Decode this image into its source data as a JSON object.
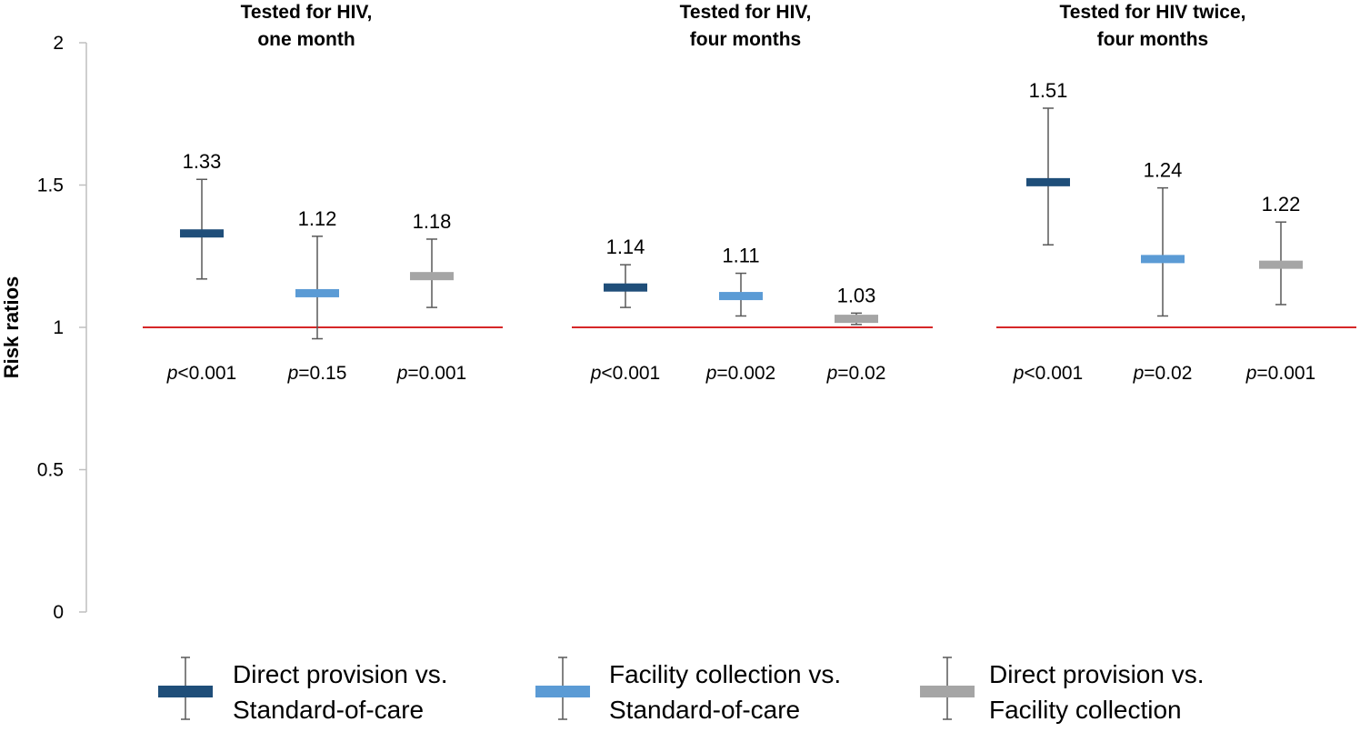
{
  "chart_data": {
    "type": "errorbar",
    "ylabel": "Risk ratios",
    "ylim": [
      0,
      2
    ],
    "yticks": [
      "0",
      "0.5",
      "1",
      "1.5",
      "2"
    ],
    "reference_line": 1,
    "reference_color": "#d62728",
    "grid": false,
    "legend_position": "bottom",
    "series": [
      {
        "key": "direct_vs_soc",
        "name_line1": "Direct provision vs.",
        "name_line2": "Standard-of-care",
        "color": "#1f4e79"
      },
      {
        "key": "facility_vs_soc",
        "name_line1": "Facility collection vs.",
        "name_line2": "Standard-of-care",
        "color": "#5b9bd5"
      },
      {
        "key": "direct_vs_facility",
        "name_line1": "Direct provision vs.",
        "name_line2": "Facility collection",
        "color": "#a5a5a5"
      }
    ],
    "panels": [
      {
        "title_line1": "Tested for HIV,",
        "title_line2": "one month",
        "points": [
          {
            "value": 1.33,
            "low": 1.17,
            "high": 1.52,
            "label": "1.33",
            "p_prefix": "p",
            "p_rest": "<0.001"
          },
          {
            "value": 1.12,
            "low": 0.96,
            "high": 1.32,
            "label": "1.12",
            "p_prefix": "p",
            "p_rest": "=0.15"
          },
          {
            "value": 1.18,
            "low": 1.07,
            "high": 1.31,
            "label": "1.18",
            "p_prefix": "p",
            "p_rest": "=0.001"
          }
        ]
      },
      {
        "title_line1": "Tested for HIV,",
        "title_line2": "four months",
        "points": [
          {
            "value": 1.14,
            "low": 1.07,
            "high": 1.22,
            "label": "1.14",
            "p_prefix": "p",
            "p_rest": "<0.001"
          },
          {
            "value": 1.11,
            "low": 1.04,
            "high": 1.19,
            "label": "1.11",
            "p_prefix": "p",
            "p_rest": "=0.002"
          },
          {
            "value": 1.03,
            "low": 1.01,
            "high": 1.05,
            "label": "1.03",
            "p_prefix": "p",
            "p_rest": "=0.02"
          }
        ]
      },
      {
        "title_line1": "Tested for HIV twice,",
        "title_line2": "four months",
        "points": [
          {
            "value": 1.51,
            "low": 1.29,
            "high": 1.77,
            "label": "1.51",
            "p_prefix": "p",
            "p_rest": "<0.001"
          },
          {
            "value": 1.24,
            "low": 1.04,
            "high": 1.49,
            "label": "1.24",
            "p_prefix": "p",
            "p_rest": "=0.02"
          },
          {
            "value": 1.22,
            "low": 1.08,
            "high": 1.37,
            "label": "1.22",
            "p_prefix": "p",
            "p_rest": "=0.001"
          }
        ]
      }
    ]
  }
}
